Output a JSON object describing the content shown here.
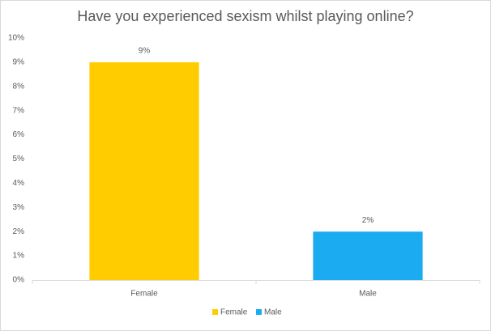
{
  "chart_data": {
    "type": "bar",
    "title": "Have you experienced sexism whilst playing online?",
    "categories": [
      "Female",
      "Male"
    ],
    "values": [
      9,
      2
    ],
    "value_labels": [
      "9%",
      "2%"
    ],
    "colors": [
      "#ffcc00",
      "#1aabf0"
    ],
    "ylim": [
      0,
      10
    ],
    "yticks": [
      {
        "value": 0,
        "label": "0%"
      },
      {
        "value": 1,
        "label": "1%"
      },
      {
        "value": 2,
        "label": "2%"
      },
      {
        "value": 3,
        "label": "3%"
      },
      {
        "value": 4,
        "label": "4%"
      },
      {
        "value": 5,
        "label": "5%"
      },
      {
        "value": 6,
        "label": "6%"
      },
      {
        "value": 7,
        "label": "7%"
      },
      {
        "value": 8,
        "label": "8%"
      },
      {
        "value": 9,
        "label": "9%"
      },
      {
        "value": 10,
        "label": "10%"
      }
    ],
    "grid": false,
    "legend": "bottom"
  }
}
